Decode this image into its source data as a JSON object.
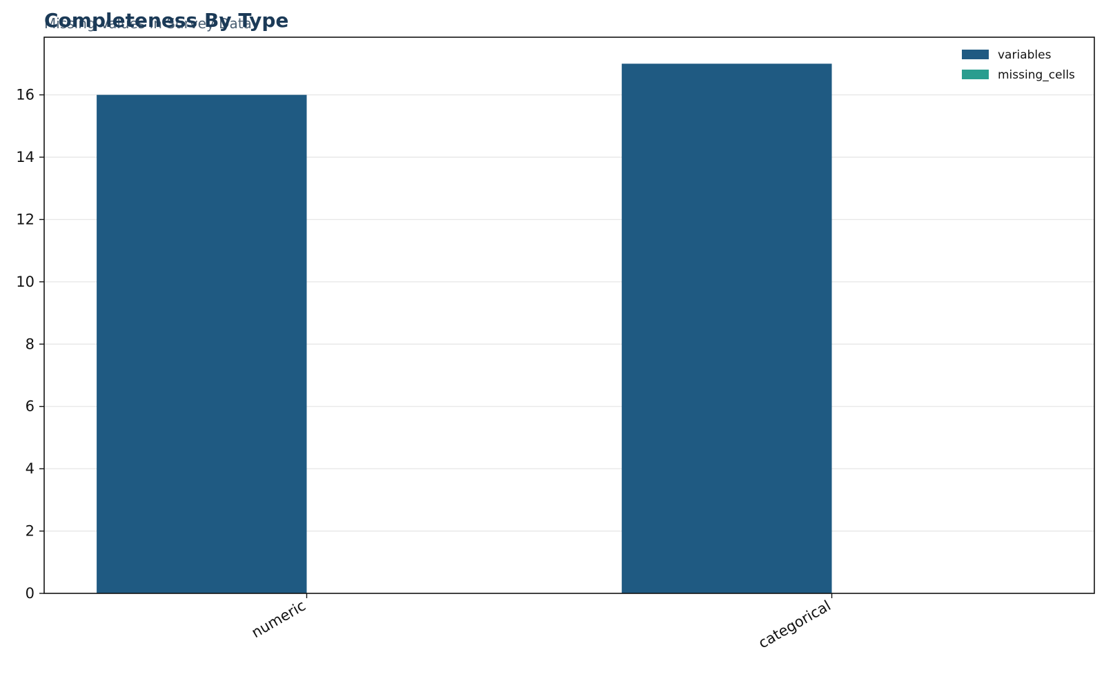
{
  "chart_data": {
    "type": "bar",
    "title": "Completeness By Type",
    "subtitle": "Missing Values in Survey Data",
    "xlabel": "",
    "ylabel": "",
    "categories": [
      "numeric",
      "categorical"
    ],
    "series": [
      {
        "name": "variables",
        "values": [
          16,
          17
        ],
        "color": "#1f5a82"
      },
      {
        "name": "missing_cells",
        "values": [
          0,
          0
        ],
        "color": "#2a9d8f"
      }
    ],
    "ylim": [
      0,
      17.85
    ],
    "yticks": [
      0,
      2,
      4,
      6,
      8,
      10,
      12,
      14,
      16
    ],
    "grid": "y",
    "legend": "top-right"
  }
}
